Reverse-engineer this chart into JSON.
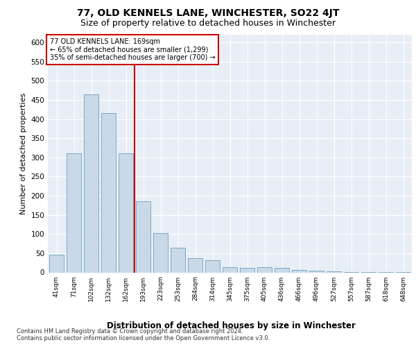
{
  "title": "77, OLD KENNELS LANE, WINCHESTER, SO22 4JT",
  "subtitle": "Size of property relative to detached houses in Winchester",
  "xlabel": "Distribution of detached houses by size in Winchester",
  "ylabel": "Number of detached properties",
  "categories": [
    "41sqm",
    "71sqm",
    "102sqm",
    "132sqm",
    "162sqm",
    "193sqm",
    "223sqm",
    "253sqm",
    "284sqm",
    "314sqm",
    "345sqm",
    "375sqm",
    "405sqm",
    "436sqm",
    "466sqm",
    "496sqm",
    "527sqm",
    "557sqm",
    "587sqm",
    "618sqm",
    "648sqm"
  ],
  "values": [
    47,
    310,
    465,
    415,
    310,
    185,
    103,
    65,
    38,
    31,
    13,
    11,
    13,
    12,
    7,
    5,
    3,
    1,
    1,
    1,
    1
  ],
  "bar_color": "#c9d9e8",
  "bar_edge_color": "#6a9fc0",
  "vline_x": 4.5,
  "vline_color": "#cc0000",
  "annotation_text": "77 OLD KENNELS LANE: 169sqm\n← 65% of detached houses are smaller (1,299)\n35% of semi-detached houses are larger (700) →",
  "annotation_box_color": "#cc0000",
  "ylim": [
    0,
    620
  ],
  "yticks": [
    0,
    50,
    100,
    150,
    200,
    250,
    300,
    350,
    400,
    450,
    500,
    550,
    600
  ],
  "background_color": "#e8eef5",
  "footer": "Contains HM Land Registry data © Crown copyright and database right 2024.\nContains public sector information licensed under the Open Government Licence v3.0.",
  "title_fontsize": 10,
  "subtitle_fontsize": 9,
  "xlabel_fontsize": 8.5,
  "ylabel_fontsize": 8
}
